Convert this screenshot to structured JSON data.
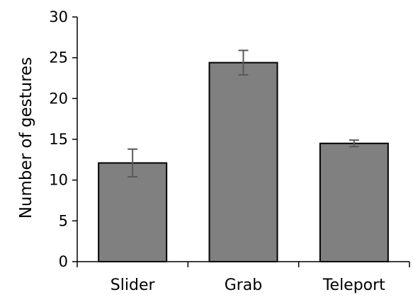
{
  "chart_data": {
    "type": "bar",
    "categories": [
      "Slider",
      "Grab",
      "Teleport"
    ],
    "values": [
      12.1,
      24.4,
      14.5
    ],
    "error_bars": [
      [
        10.4,
        13.8
      ],
      [
        22.9,
        25.9
      ],
      [
        14.1,
        14.9
      ]
    ],
    "title": "",
    "xlabel": "",
    "ylabel": "Number of gestures",
    "ylim": [
      0,
      30
    ],
    "yticks": [
      "0",
      "5",
      "10",
      "15",
      "20",
      "25",
      "30"
    ],
    "ytick_values": [
      0,
      5,
      10,
      15,
      20,
      25,
      30
    ],
    "grid": false,
    "bar_color": "#808080",
    "bar_edge_color": "#000000",
    "error_bar_color": "#595959"
  }
}
